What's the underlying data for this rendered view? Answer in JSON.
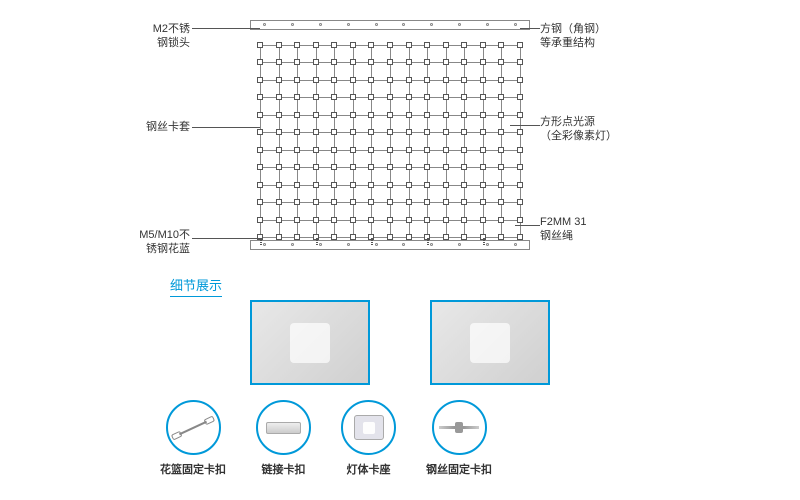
{
  "diagram": {
    "labels": {
      "lock_head": "M2不锈\n钢锁头",
      "wire_sleeve": "钢丝卡套",
      "turnbuckle": "M5/M10不\n锈钢花蓝",
      "steel_frame": "方钢（角钢）\n等承重结构",
      "pixel_light": "方形点光源\n（全彩像素灯）",
      "wire_rope": "F2MM 31\n钢丝绳"
    },
    "grid": {
      "rows": 12,
      "cols": 15,
      "node_color": "#555555",
      "line_color": "#888888"
    },
    "rail_color": "#888888"
  },
  "section_title": "细节展示",
  "components": [
    {
      "id": "turnbuckle-clip",
      "label": "花篮固定卡扣"
    },
    {
      "id": "connector-clip",
      "label": "链接卡扣"
    },
    {
      "id": "lamp-holder",
      "label": "灯体卡座"
    },
    {
      "id": "wire-clip",
      "label": "钢丝固定卡扣"
    }
  ],
  "colors": {
    "accent": "#0099d9",
    "text": "#333333",
    "leader": "#555555"
  }
}
